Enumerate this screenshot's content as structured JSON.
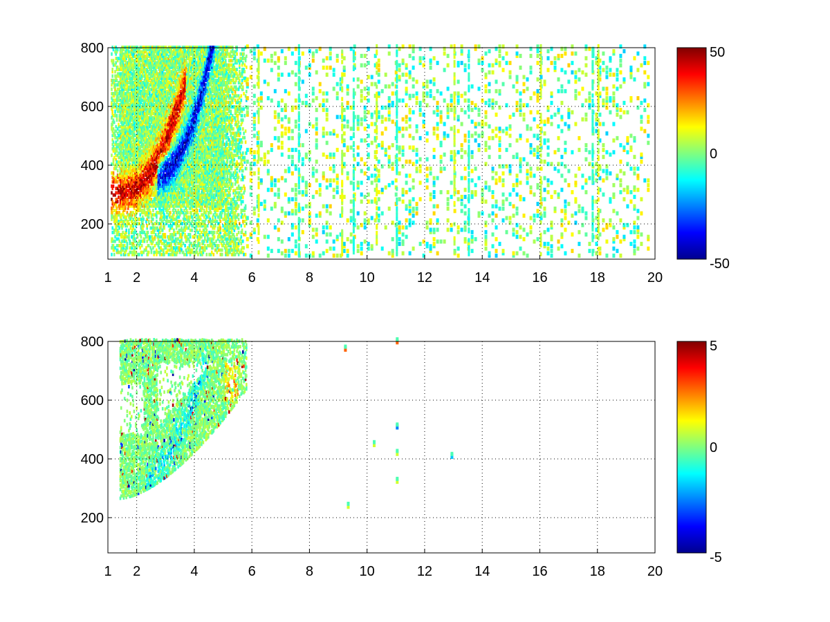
{
  "chart_data": [
    {
      "type": "heatmap",
      "panel": "top",
      "xlim": [
        1,
        20
      ],
      "ylim": [
        80,
        800
      ],
      "x_ticks": [
        "1",
        "2",
        "4",
        "6",
        "8",
        "10",
        "12",
        "14",
        "16",
        "18",
        "20"
      ],
      "y_ticks": [
        "200",
        "400",
        "600",
        "800"
      ],
      "grid": true,
      "colorbar": {
        "clim": [
          -50,
          50
        ],
        "tick_labels": [
          "50",
          "0",
          "-50"
        ],
        "colormap": "jet"
      },
      "pattern": {
        "dense_region": {
          "x": [
            1.1,
            5.8
          ],
          "y": [
            250,
            800
          ]
        },
        "positive_band": "red/orange band curving from (1.5, 300) through (3, 380) up to (3.5, 700)",
        "negative_band": "blue band curving from (3, 360) through (4.3, 450) up to (4.5, 800)",
        "sparse_region": {
          "x": [
            5.8,
            19.8
          ],
          "values": "near zero, scattered vertical streaks"
        },
        "notable_streaks_x": [
          6.2,
          7.6,
          9.1,
          9.5,
          10.3,
          11.0,
          13.0,
          13.5,
          16.0,
          17.8,
          18.0
        ]
      }
    },
    {
      "type": "heatmap",
      "panel": "bottom",
      "xlim": [
        1,
        20
      ],
      "ylim": [
        80,
        800
      ],
      "x_ticks": [
        "1",
        "2",
        "4",
        "6",
        "8",
        "10",
        "12",
        "14",
        "16",
        "18",
        "20"
      ],
      "y_ticks": [
        "200",
        "400",
        "600",
        "800"
      ],
      "grid": true,
      "colorbar": {
        "clim": [
          -5,
          5
        ],
        "tick_labels": [
          "5",
          "0",
          "-5"
        ],
        "colormap": "jet"
      },
      "pattern": {
        "dense_region": {
          "x": [
            1.4,
            5.8
          ],
          "y": [
            280,
            800
          ]
        },
        "values": "mostly near zero (green/cyan), scattered +/- outliers; blue band near x 2.5-4.3, orange patch near x 5.2, y 600-700",
        "isolated_points": [
          {
            "x": 9.2,
            "y": 765
          },
          {
            "x": 9.3,
            "y": 230
          },
          {
            "x": 10.2,
            "y": 440
          },
          {
            "x": 11.0,
            "y": 790
          },
          {
            "x": 11.0,
            "y": 500
          },
          {
            "x": 11.0,
            "y": 410
          },
          {
            "x": 11.0,
            "y": 315
          },
          {
            "x": 12.9,
            "y": 400
          }
        ]
      }
    }
  ]
}
